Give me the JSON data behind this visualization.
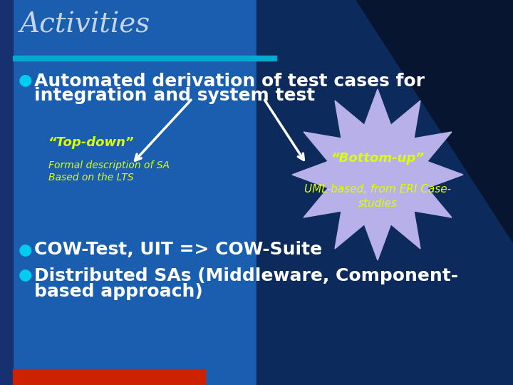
{
  "title": "Activities",
  "title_color": "#c8d4e8",
  "title_fontsize": 28,
  "bg_color_main": "#1a5faf",
  "bg_color_right": "#0d2a5c",
  "bg_color_dark": "#071530",
  "header_bar_color": "#00aacc",
  "bullet_color": "#00ccee",
  "bullet_text_color": "#ffffff",
  "bullet1_line1": "Automated derivation of test cases for",
  "bullet1_line2": "integration and system test",
  "bullet1_fontsize": 18,
  "topdown_label": "“Top-down”",
  "topdown_sub1": "Formal description of SA",
  "topdown_sub2": "Based on the LTS",
  "topdown_color": "#ddff00",
  "bottomup_label": "“Bottom-up”",
  "bottomup_sub": "UML-based, from ERI Case-\nstudies",
  "bottomup_color": "#ddff00",
  "starburst_color": "#b8b0e8",
  "bullet2": "COW-Test, UIT => COW-Suite",
  "bullet3_line1": "Distributed SAs (Middleware, Component-",
  "bullet3_line2": "based approach)",
  "bullet23_fontsize": 18,
  "footer_color": "#cc2200",
  "arrow_color": "#ffffff",
  "left_stripe_color": "#1a3a6a"
}
